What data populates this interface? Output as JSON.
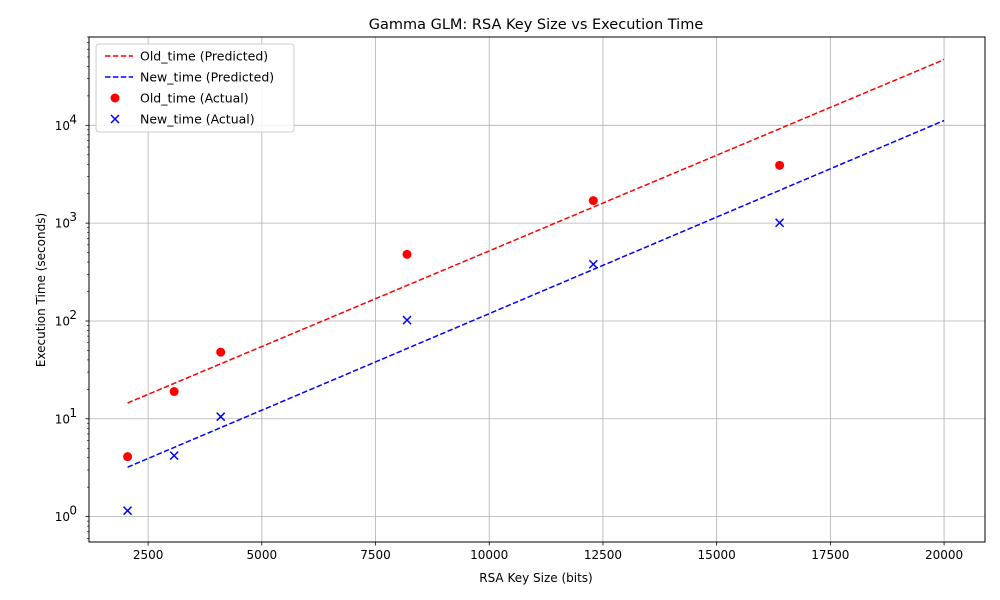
{
  "chart_data": {
    "type": "scatter",
    "title": "Gamma GLM: RSA Key Size vs Execution Time",
    "xlabel": "RSA Key Size (bits)",
    "ylabel": "Execution Time (seconds)",
    "xlim": [
      1200,
      20900
    ],
    "ylim": [
      0.55,
      80000
    ],
    "yscale": "log",
    "grid": true,
    "legend_position": "top-left",
    "x_ticks": [
      2500,
      5000,
      7500,
      10000,
      12500,
      15000,
      17500,
      20000
    ],
    "y_ticks": [
      1,
      10,
      100,
      1000,
      10000
    ],
    "y_tick_labels": [
      {
        "base": "10",
        "exp": "0"
      },
      {
        "base": "10",
        "exp": "1"
      },
      {
        "base": "10",
        "exp": "2"
      },
      {
        "base": "10",
        "exp": "3"
      },
      {
        "base": "10",
        "exp": "4"
      }
    ],
    "series": [
      {
        "name": "Old_time (Predicted)",
        "kind": "line",
        "color": "#ff0000",
        "dash": "dashed",
        "x": [
          2048,
          20000
        ],
        "y": [
          14.5,
          47000
        ]
      },
      {
        "name": "New_time (Predicted)",
        "kind": "line",
        "color": "#0000ff",
        "dash": "dashed",
        "x": [
          2048,
          20000
        ],
        "y": [
          3.2,
          11200
        ]
      },
      {
        "name": "Old_time (Actual)",
        "kind": "scatter",
        "marker": "circle",
        "color": "#ff0000",
        "x": [
          2048,
          3072,
          4096,
          8192,
          12288,
          16384
        ],
        "y": [
          4.1,
          19,
          48,
          480,
          1700,
          3900
        ]
      },
      {
        "name": "New_time (Actual)",
        "kind": "scatter",
        "marker": "x",
        "color": "#0000ff",
        "x": [
          2048,
          3072,
          4096,
          8192,
          12288,
          16384
        ],
        "y": [
          1.15,
          4.2,
          10.5,
          102,
          380,
          1010
        ]
      }
    ]
  }
}
